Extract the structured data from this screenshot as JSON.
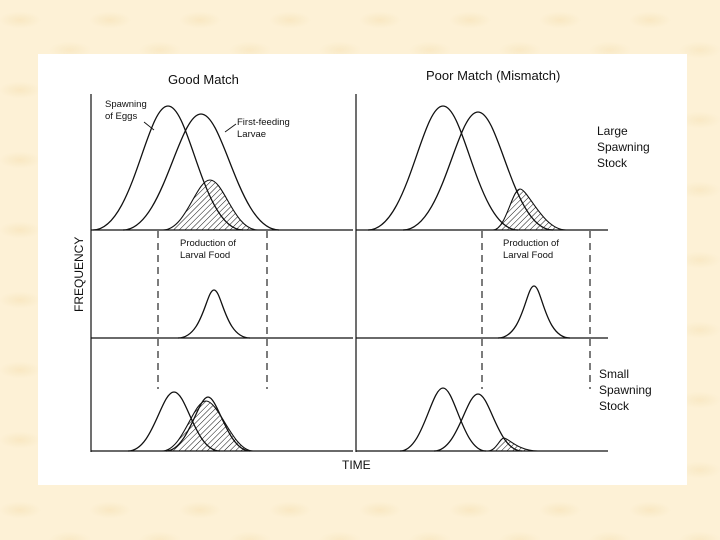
{
  "figure": {
    "left_title": "Good Match",
    "right_title": "Poor Match (Mismatch)",
    "y_axis_label": "FREQUENCY",
    "x_axis_label": "TIME",
    "labels": {
      "spawning_line1": "Spawning",
      "spawning_line2": "of Eggs",
      "larvae_line1": "First-feeding",
      "larvae_line2": "Larvae",
      "food_left_line1": "Production of",
      "food_left_line2": "Larval Food",
      "food_right_line1": "Production of",
      "food_right_line2": "Larval Food",
      "large_line1": "Large",
      "large_line2": "Spawning",
      "large_line3": "Stock",
      "small_line1": "Small",
      "small_line2": "Spawning",
      "small_line3": "Stock"
    }
  }
}
